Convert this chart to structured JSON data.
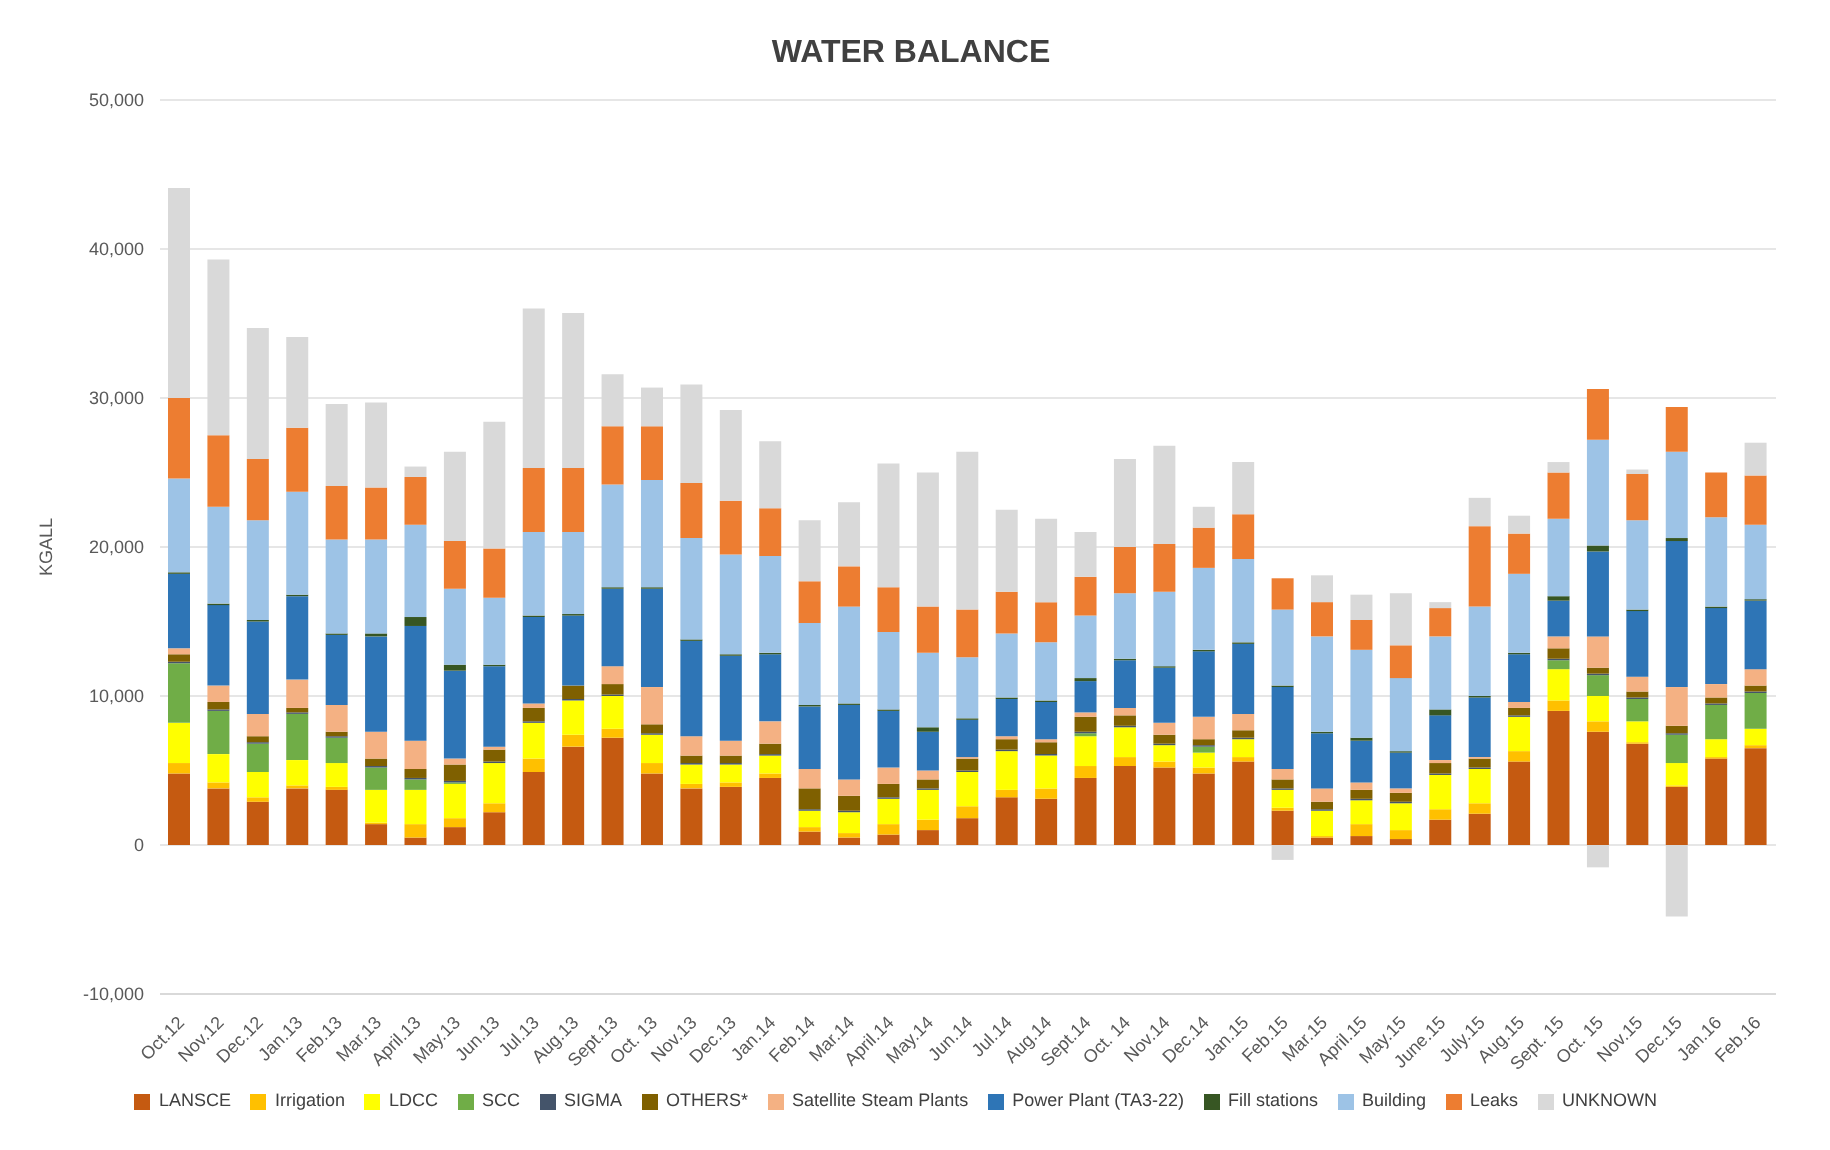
{
  "chart_data": {
    "type": "bar",
    "title": "WATER BALANCE",
    "ylabel": "KGALL",
    "stacked": true,
    "grid": "y",
    "legend": "bottom",
    "categories": [
      "Oct.12",
      "Nov.12",
      "Dec.12",
      "Jan.13",
      "Feb.13",
      "Mar.13",
      "April.13",
      "May.13",
      "Jun.13",
      "Jul.13",
      "Aug.13",
      "Sept.13",
      "Oct. 13",
      "Nov.13",
      "Dec.13",
      "Jan.14",
      "Feb.14",
      "Mar.14",
      "April.14",
      "May.14",
      "Jun.14",
      "Jul.14",
      "Aug.14",
      "Sept.14",
      "Oct. 14",
      "Nov.14",
      "Dec.14",
      "Jan.15",
      "Feb.15",
      "Mar.15",
      "April.15",
      "May.15",
      "June.15",
      "July.15",
      "Aug.15",
      "Sept. 15",
      "Oct. 15",
      "Nov.15",
      "Dec.15",
      "Jan.16",
      "Feb.16"
    ],
    "ylim": [
      -10000,
      50000
    ],
    "yticks": [
      {
        "value": -10000,
        "label": "-10,000"
      },
      {
        "value": 0,
        "label": "0"
      },
      {
        "value": 10000,
        "label": "10,000"
      },
      {
        "value": 20000,
        "label": "20,000"
      },
      {
        "value": 30000,
        "label": "30,000"
      },
      {
        "value": 40000,
        "label": "40,000"
      },
      {
        "value": 50000,
        "label": "50,000"
      }
    ],
    "series": [
      {
        "name": "LANSCE",
        "color": "#c55a11",
        "values": [
          4800,
          3800,
          2900,
          3800,
          3700,
          1400,
          500,
          1200,
          2200,
          4900,
          6600,
          7200,
          4800,
          3800,
          3900,
          4500,
          900,
          500,
          700,
          1000,
          1800,
          3200,
          3100,
          4500,
          5300,
          5200,
          4800,
          5600,
          2300,
          500,
          600,
          400,
          1700,
          2100,
          5600,
          9000,
          7600,
          6800,
          3900,
          5800,
          6500
        ]
      },
      {
        "name": "Irrigation",
        "color": "#ffc000",
        "values": [
          700,
          400,
          300,
          200,
          200,
          100,
          900,
          600,
          600,
          900,
          800,
          600,
          700,
          300,
          300,
          300,
          300,
          300,
          700,
          700,
          800,
          500,
          700,
          800,
          600,
          400,
          400,
          300,
          200,
          100,
          800,
          600,
          700,
          700,
          700,
          700,
          700,
          100,
          100,
          100,
          200
        ]
      },
      {
        "name": "LDCC",
        "color": "#ffff00",
        "values": [
          2700,
          1900,
          1700,
          1700,
          1600,
          2200,
          2300,
          2300,
          2700,
          2400,
          2300,
          2200,
          1900,
          1300,
          1200,
          1200,
          1100,
          1400,
          1700,
          2000,
          2300,
          2600,
          2200,
          2000,
          2000,
          1100,
          1000,
          1200,
          1200,
          1700,
          1600,
          1800,
          2300,
          2300,
          2300,
          2100,
          1700,
          1400,
          1500,
          1200,
          1100
        ]
      },
      {
        "name": "SCC",
        "color": "#70ad47",
        "values": [
          4000,
          2900,
          1900,
          3100,
          1700,
          1500,
          700,
          100,
          0,
          0,
          0,
          0,
          0,
          0,
          0,
          0,
          0,
          0,
          0,
          0,
          0,
          0,
          0,
          200,
          0,
          0,
          400,
          0,
          0,
          0,
          0,
          0,
          0,
          0,
          0,
          600,
          1400,
          1500,
          1900,
          2300,
          2400
        ]
      },
      {
        "name": "SIGMA",
        "color": "#44546a",
        "values": [
          100,
          100,
          100,
          100,
          100,
          100,
          100,
          100,
          100,
          100,
          100,
          100,
          100,
          100,
          100,
          100,
          100,
          100,
          100,
          100,
          100,
          100,
          100,
          100,
          100,
          100,
          100,
          100,
          100,
          100,
          100,
          100,
          100,
          100,
          100,
          100,
          100,
          100,
          100,
          100,
          100
        ]
      },
      {
        "name": "OTHERS*",
        "color": "#7f6000",
        "values": [
          500,
          500,
          400,
          300,
          300,
          500,
          600,
          1100,
          800,
          900,
          900,
          700,
          600,
          500,
          500,
          700,
          1400,
          1000,
          900,
          600,
          800,
          700,
          800,
          1000,
          700,
          600,
          400,
          500,
          600,
          500,
          600,
          600,
          700,
          600,
          500,
          700,
          400,
          400,
          500,
          400,
          400
        ]
      },
      {
        "name": "Satellite Steam Plants",
        "color": "#f4b183",
        "values": [
          400,
          1100,
          1500,
          1900,
          1800,
          1800,
          1900,
          400,
          200,
          300,
          0,
          1200,
          2500,
          1300,
          1000,
          1500,
          1300,
          1100,
          1100,
          600,
          100,
          200,
          200,
          300,
          500,
          800,
          1500,
          1100,
          700,
          900,
          500,
          300,
          200,
          100,
          400,
          800,
          2100,
          1000,
          2600,
          900,
          1100
        ]
      },
      {
        "name": "Power Plant (TA3-22)",
        "color": "#2e75b6",
        "values": [
          5000,
          5400,
          6200,
          5600,
          4700,
          6400,
          7700,
          5900,
          5400,
          5800,
          4700,
          5200,
          6600,
          6400,
          5700,
          4500,
          4200,
          5000,
          3800,
          2600,
          2500,
          2500,
          2500,
          2100,
          3200,
          3700,
          4400,
          4700,
          5500,
          3700,
          2800,
          2400,
          3000,
          4000,
          3200,
          2400,
          5700,
          4400,
          9800,
          5100,
          4600
        ]
      },
      {
        "name": "Fill stations",
        "color": "#375623",
        "values": [
          100,
          100,
          100,
          100,
          100,
          200,
          600,
          400,
          100,
          100,
          100,
          100,
          100,
          100,
          100,
          100,
          100,
          100,
          100,
          300,
          100,
          100,
          100,
          200,
          100,
          100,
          100,
          100,
          100,
          100,
          200,
          100,
          400,
          100,
          100,
          300,
          400,
          100,
          200,
          100,
          100
        ]
      },
      {
        "name": "Building",
        "color": "#9dc3e6",
        "values": [
          6300,
          6500,
          6700,
          6900,
          6300,
          6300,
          6200,
          5100,
          4500,
          5600,
          5500,
          6900,
          7200,
          6800,
          6700,
          6500,
          5500,
          6500,
          5200,
          5000,
          4100,
          4300,
          3900,
          4200,
          4400,
          5000,
          5500,
          5600,
          5100,
          6400,
          5900,
          4900,
          4900,
          6000,
          5300,
          5200,
          7100,
          6000,
          5800,
          6000,
          5000
        ]
      },
      {
        "name": "Leaks",
        "color": "#ed7d31",
        "values": [
          5400,
          4800,
          4100,
          4300,
          3600,
          3500,
          3200,
          3200,
          3300,
          4300,
          4300,
          3900,
          3600,
          3700,
          3600,
          3200,
          2800,
          2700,
          3000,
          3100,
          3200,
          2800,
          2700,
          2600,
          3100,
          3200,
          2700,
          3000,
          2100,
          2300,
          2000,
          2200,
          1900,
          5400,
          2700,
          3100,
          3400,
          3100,
          3000,
          3000,
          3300
        ]
      },
      {
        "name": "UNKNOWN",
        "color": "#d9d9d9",
        "values": [
          14100,
          11800,
          8800,
          6100,
          5500,
          5700,
          700,
          6000,
          8500,
          10700,
          10400,
          3500,
          2600,
          6600,
          6100,
          4500,
          4100,
          4300,
          8300,
          9000,
          10600,
          5500,
          5600,
          3000,
          5900,
          6600,
          1400,
          3500,
          -1000,
          1800,
          1700,
          3500,
          400,
          1900,
          1200,
          700,
          -1500,
          300,
          -4800,
          0,
          2200
        ]
      }
    ]
  }
}
